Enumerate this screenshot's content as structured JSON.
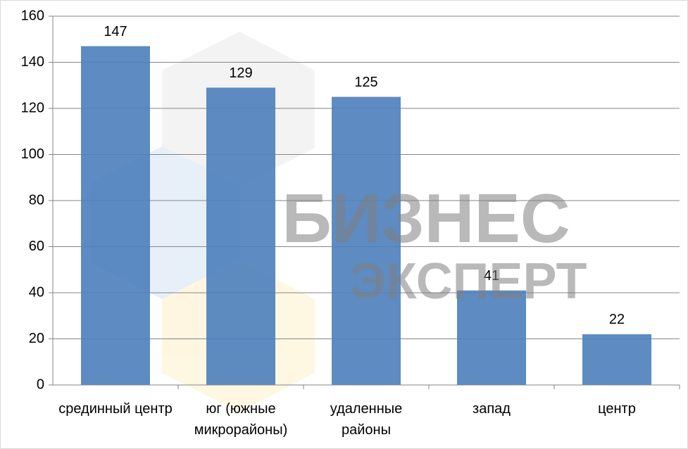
{
  "chart_data": {
    "type": "bar",
    "categories": [
      "срединный центр",
      "юг (южные микрорайоны)",
      "удаленные районы",
      "запад",
      "центр"
    ],
    "values": [
      147,
      129,
      125,
      41,
      22
    ],
    "color": "#4f81bd",
    "ylim": [
      0,
      160
    ],
    "yticks": [
      0,
      20,
      40,
      60,
      80,
      100,
      120,
      140,
      160
    ],
    "grid": true,
    "watermark": [
      "БИЗНЕС",
      "ЭКСПЕРТ"
    ]
  }
}
